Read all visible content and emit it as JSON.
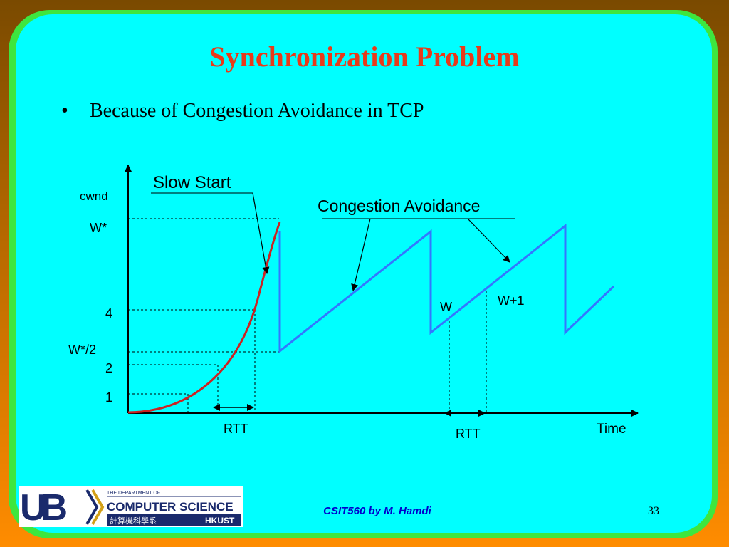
{
  "slide": {
    "title": "Synchronization Problem",
    "bullet_marker": "•",
    "bullet": "Because of Congestion Avoidance in TCP",
    "footer": "CSIT560 by M. Hamdi",
    "page_number": "33"
  },
  "diagram": {
    "y_axis_label": "cwnd",
    "x_axis_label": "Time",
    "labels": {
      "w_star": "W*",
      "four": "4",
      "w_star_half": "W*/2",
      "two": "2",
      "one": "1",
      "w": "W",
      "w_plus_1": "W+1",
      "rtt_left": "RTT",
      "rtt_right": "RTT"
    },
    "callouts": {
      "slow_start": "Slow Start",
      "congestion_avoidance": "Congestion Avoidance"
    },
    "colors": {
      "slow_start_curve": "#cc2222",
      "congestion_window": "#3377ff",
      "axes": "#000000"
    }
  },
  "logo": {
    "ub": "UB",
    "dept_small": "THE DEPARTMENT OF",
    "dept_name": "COMPUTER SCIENCE",
    "chinese": "計算機科學系",
    "school": "HKUST",
    "colors": {
      "navy": "#1a2a6c",
      "gold": "#d4a017"
    }
  }
}
